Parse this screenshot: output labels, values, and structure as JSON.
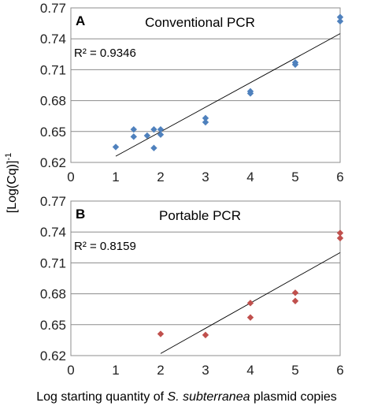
{
  "chart_data": [
    {
      "type": "scatter",
      "panel_label": "A",
      "title": "Conventional PCR",
      "r_squared_label": "R² = 0.9346",
      "xlim": [
        0,
        6
      ],
      "ylim": [
        0.62,
        0.77
      ],
      "x_ticks": [
        "0",
        "1",
        "2",
        "3",
        "4",
        "5",
        "6"
      ],
      "y_ticks": [
        "0.62",
        "0.65",
        "0.68",
        "0.71",
        "0.74",
        "0.77"
      ],
      "grid": "horizontal",
      "trendline": {
        "x": [
          1,
          6
        ],
        "y": [
          0.626,
          0.745
        ]
      },
      "series": [
        {
          "color": "#4f81bd",
          "marker": "diamond",
          "points": [
            [
              1.0,
              0.635
            ],
            [
              1.4,
              0.652
            ],
            [
              1.4,
              0.645
            ],
            [
              1.7,
              0.646
            ],
            [
              1.85,
              0.652
            ],
            [
              1.85,
              0.634
            ],
            [
              2.0,
              0.652
            ],
            [
              2.0,
              0.647
            ],
            [
              3.0,
              0.663
            ],
            [
              3.0,
              0.659
            ],
            [
              4.0,
              0.689
            ],
            [
              4.0,
              0.687
            ],
            [
              5.0,
              0.717
            ],
            [
              5.0,
              0.715
            ],
            [
              6.0,
              0.761
            ],
            [
              6.0,
              0.757
            ]
          ]
        }
      ]
    },
    {
      "type": "scatter",
      "panel_label": "B",
      "title": "Portable PCR",
      "r_squared_label": "R² = 0.8159",
      "xlim": [
        0,
        6
      ],
      "ylim": [
        0.62,
        0.77
      ],
      "x_ticks": [
        "0",
        "1",
        "2",
        "3",
        "4",
        "5",
        "6"
      ],
      "y_ticks": [
        "0.62",
        "0.65",
        "0.68",
        "0.71",
        "0.74",
        "0.77"
      ],
      "grid": "horizontal",
      "trendline": {
        "x": [
          2,
          6
        ],
        "y": [
          0.622,
          0.72
        ]
      },
      "series": [
        {
          "color": "#c0504d",
          "marker": "diamond",
          "points": [
            [
              2.0,
              0.641
            ],
            [
              3.0,
              0.64
            ],
            [
              4.0,
              0.671
            ],
            [
              4.0,
              0.657
            ],
            [
              5.0,
              0.681
            ],
            [
              5.0,
              0.673
            ],
            [
              6.0,
              0.739
            ],
            [
              6.0,
              0.734
            ]
          ]
        }
      ]
    }
  ],
  "axis_labels": {
    "x_prefix": "Log starting quantity of ",
    "x_italic": "S. subterranea",
    "x_suffix": " plasmid copies",
    "y_main": "[Log(Cq)]",
    "y_sup": "-1"
  }
}
